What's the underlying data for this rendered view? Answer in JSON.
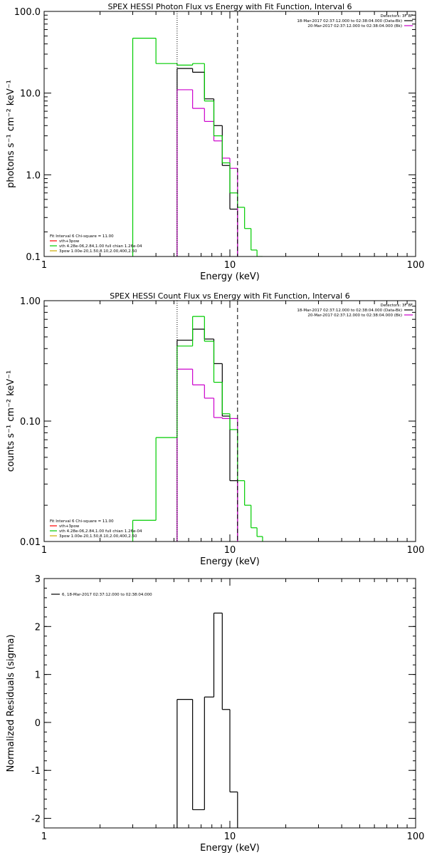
{
  "chart_data": [
    {
      "type": "line",
      "title": "SPEX HESSI Photon Flux vs Energy with Fit Function, Interval 6",
      "xlabel": "Energy (keV)",
      "ylabel": "photons s⁻¹ cm⁻² keV⁻¹",
      "x_scale": "log",
      "y_scale": "log",
      "xlim": [
        1,
        100
      ],
      "ylim": [
        0.1,
        100
      ],
      "x_ticks": [
        {
          "value": 1,
          "label": "1"
        },
        {
          "value": 10,
          "label": "10"
        },
        {
          "value": 100,
          "label": "100"
        }
      ],
      "y_ticks": [
        {
          "value": 0.1,
          "label": "0.1"
        },
        {
          "value": 1,
          "label": "1.0"
        },
        {
          "value": 10,
          "label": "10.0"
        },
        {
          "value": 100,
          "label": "100.0"
        }
      ],
      "vlines": [
        {
          "x": 5.2,
          "style": "dotted"
        },
        {
          "x": 11.0,
          "style": "dashed"
        }
      ],
      "legend_top": [
        {
          "text": "Detectors: 3F 8F",
          "color": "#000000",
          "line": false
        },
        {
          "text": "18-Mar-2017 02:37:12.000 to 02:38:04.000 (Data-Bk)",
          "color": "#000000",
          "line": true
        },
        {
          "text": "20-Mar-2017 02:37:12.000 to 02:38:04.000 (Bk)",
          "color": "#cc00cc",
          "line": true
        }
      ],
      "legend_bottom": [
        {
          "text": "Fit Interval 6   Chi-square = 11.00",
          "color": "#000000",
          "line": false
        },
        {
          "text": "vth+3pow",
          "color": "#ff0000",
          "line": true
        },
        {
          "text": "vth 4.28e-06,2.84,1.00  full chian 1.26e-04",
          "color": "#00cc00",
          "line": true
        },
        {
          "text": "3pow 1.00e-20,1.50,8.10,2.00,400,2.50",
          "color": "#ccaa00",
          "line": true
        }
      ],
      "series": [
        {
          "role": "data-minus-background",
          "color": "#000000",
          "edges": [
            5.2,
            6.3,
            7.3,
            8.2,
            9.1,
            10.0,
            11.0
          ],
          "values": [
            20,
            18,
            8.5,
            4.0,
            1.3,
            0.38
          ]
        },
        {
          "role": "background",
          "color": "#cc00cc",
          "edges": [
            5.2,
            6.3,
            7.3,
            8.2,
            9.1,
            10.0,
            11.0
          ],
          "values": [
            11,
            6.5,
            4.5,
            2.6,
            1.6,
            1.2
          ]
        },
        {
          "role": "fit",
          "color": "#00cc00",
          "edges": [
            3.0,
            4.0,
            5.2,
            6.3,
            7.3,
            8.2,
            9.1,
            10.0,
            11.0,
            12.0,
            13.0,
            14.0,
            15.0
          ],
          "values": [
            47,
            23,
            22,
            23,
            8,
            3,
            1.4,
            0.6,
            0.4,
            0.22,
            0.12,
            0.1
          ]
        }
      ]
    },
    {
      "type": "line",
      "title": "SPEX HESSI Count Flux vs Energy with Fit Function, Interval 6",
      "xlabel": "Energy (keV)",
      "ylabel": "counts s⁻¹ cm⁻² keV⁻¹",
      "x_scale": "log",
      "y_scale": "log",
      "xlim": [
        1,
        100
      ],
      "ylim": [
        0.01,
        1
      ],
      "x_ticks": [
        {
          "value": 1,
          "label": "1"
        },
        {
          "value": 10,
          "label": "10"
        },
        {
          "value": 100,
          "label": "100"
        }
      ],
      "y_ticks": [
        {
          "value": 0.01,
          "label": "0.01"
        },
        {
          "value": 0.1,
          "label": "0.10"
        },
        {
          "value": 1,
          "label": "1.00"
        }
      ],
      "vlines": [
        {
          "x": 5.2,
          "style": "dotted"
        },
        {
          "x": 11.0,
          "style": "dashed"
        }
      ],
      "legend_top": [
        {
          "text": "Detectors: 3F 8F",
          "color": "#000000",
          "line": false
        },
        {
          "text": "18-Mar-2017 02:37:12.000 to 02:38:04.000 (Data-Bk)",
          "color": "#000000",
          "line": true
        },
        {
          "text": "20-Mar-2017 02:37:12.000 to 02:38:04.000 (Bk)",
          "color": "#cc00cc",
          "line": true
        }
      ],
      "legend_bottom": [
        {
          "text": "Fit Interval 6   Chi-square = 11.00",
          "color": "#000000",
          "line": false
        },
        {
          "text": "vth+3pow",
          "color": "#ff0000",
          "line": true
        },
        {
          "text": "vth 4.28e-06,2.84,1.00  full chian 1.26e-04",
          "color": "#00cc00",
          "line": true
        },
        {
          "text": "3pow 1.00e-20,1.50,8.10,2.00,400,2.50",
          "color": "#ccaa00",
          "line": true
        }
      ],
      "series": [
        {
          "role": "data-minus-background",
          "color": "#000000",
          "edges": [
            5.2,
            6.3,
            7.3,
            8.2,
            9.1,
            10.0,
            11.0
          ],
          "values": [
            0.47,
            0.58,
            0.48,
            0.3,
            0.11,
            0.032
          ]
        },
        {
          "role": "background",
          "color": "#cc00cc",
          "edges": [
            5.2,
            6.3,
            7.3,
            8.2,
            9.1,
            10.0,
            11.0
          ],
          "values": [
            0.27,
            0.2,
            0.155,
            0.107,
            0.105,
            0.105
          ]
        },
        {
          "role": "fit",
          "color": "#00cc00",
          "edges": [
            3.0,
            4.0,
            5.2,
            6.3,
            7.3,
            8.2,
            9.1,
            10.0,
            11.0,
            12.0,
            13.0,
            14.0,
            15.0
          ],
          "values": [
            0.015,
            0.073,
            0.42,
            0.74,
            0.46,
            0.21,
            0.115,
            0.085,
            0.032,
            0.02,
            0.013,
            0.011
          ]
        }
      ]
    },
    {
      "type": "line",
      "title": "",
      "xlabel": "Energy (keV)",
      "ylabel": "Normalized Residuals (sigma)",
      "x_scale": "log",
      "y_scale": "linear",
      "xlim": [
        1,
        100
      ],
      "ylim": [
        -2.2,
        3
      ],
      "x_ticks": [
        {
          "value": 1,
          "label": "1"
        },
        {
          "value": 10,
          "label": "10"
        },
        {
          "value": 100,
          "label": "100"
        }
      ],
      "y_ticks": [
        {
          "value": -2,
          "label": "-2"
        },
        {
          "value": -1,
          "label": "-1"
        },
        {
          "value": 0,
          "label": "0"
        },
        {
          "value": 1,
          "label": "1"
        },
        {
          "value": 2,
          "label": "2"
        },
        {
          "value": 3,
          "label": "3"
        }
      ],
      "vlines": [],
      "legend_top": [],
      "legend_bottom": [],
      "legend_left": [
        {
          "text": "6, 18-Mar-2017 02:37:12.000 to 02:38:04.000",
          "color": "#000000",
          "line": true
        }
      ],
      "series": [
        {
          "role": "residuals",
          "color": "#000000",
          "edges": [
            5.2,
            6.3,
            7.3,
            8.2,
            9.1,
            10.0,
            11.0
          ],
          "values": [
            0.48,
            -1.82,
            0.53,
            2.28,
            0.27,
            -1.45
          ]
        }
      ]
    }
  ]
}
